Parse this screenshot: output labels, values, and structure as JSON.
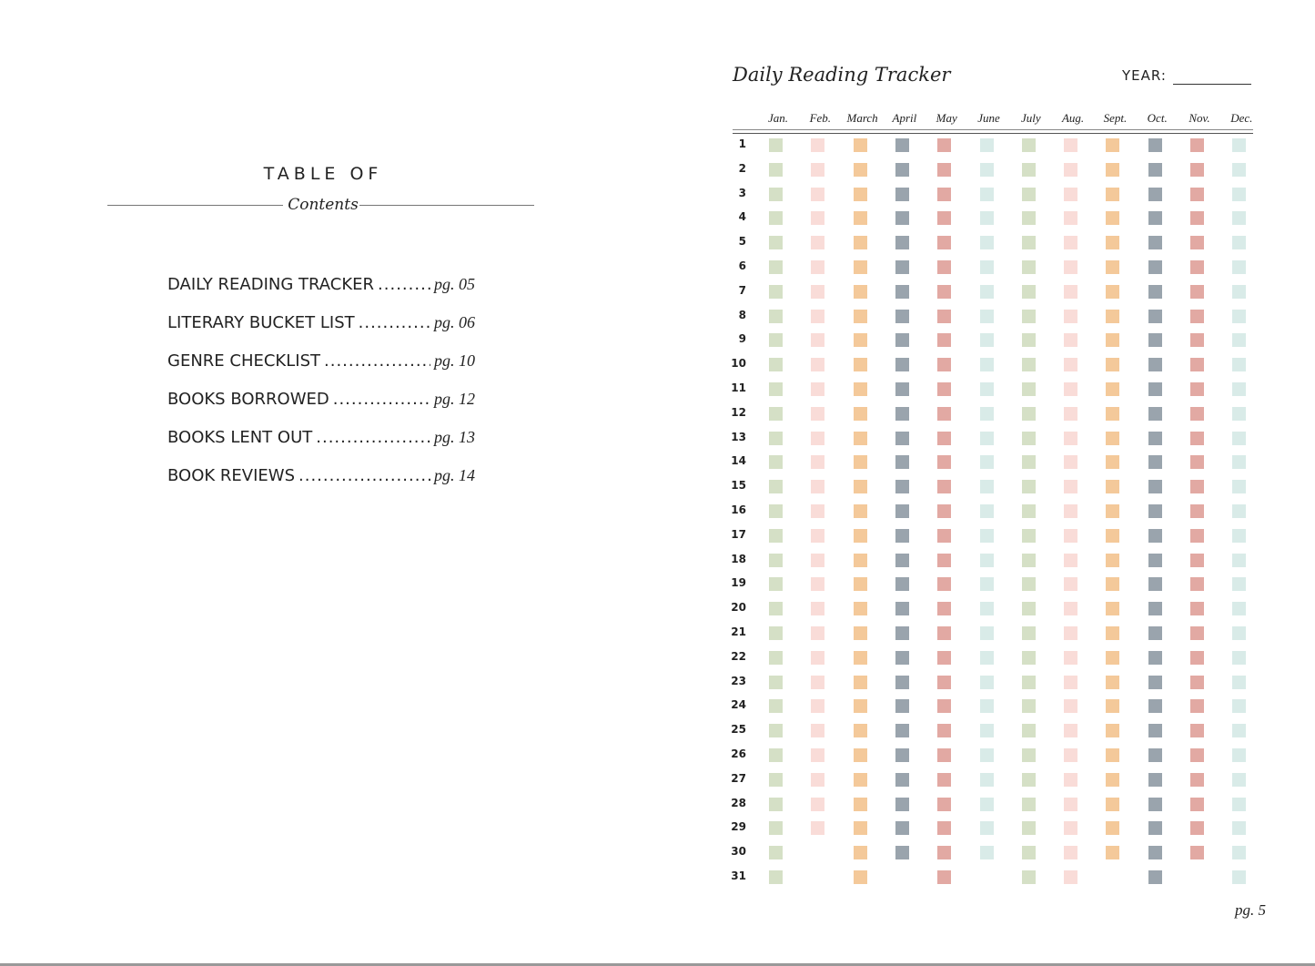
{
  "left_page": {
    "title_top": "TABLE OF",
    "title_bottom": "Contents",
    "items": [
      {
        "label": "DAILY READING TRACKER",
        "page": "pg. 05"
      },
      {
        "label": "LITERARY BUCKET LIST",
        "page": "pg. 06"
      },
      {
        "label": "GENRE  CHECKLIST",
        "page": "pg. 10"
      },
      {
        "label": "BOOKS  BORROWED",
        "page": "pg. 12"
      },
      {
        "label": "BOOKS LENT OUT",
        "page": "pg. 13"
      },
      {
        "label": "BOOK REVIEWS",
        "page": "pg. 14"
      }
    ]
  },
  "right_page": {
    "title": "Daily Reading Tracker",
    "year_label": "YEAR:",
    "months": [
      {
        "label": "Jan.",
        "days": 31,
        "color": "#d5e0c6"
      },
      {
        "label": "Feb.",
        "days": 29,
        "color": "#f9dcd8"
      },
      {
        "label": "March",
        "days": 31,
        "color": "#f4c99a"
      },
      {
        "label": "April",
        "days": 30,
        "color": "#9aa4ad"
      },
      {
        "label": "May",
        "days": 31,
        "color": "#e2a9a3"
      },
      {
        "label": "June",
        "days": 30,
        "color": "#d9ebe8"
      },
      {
        "label": "July",
        "days": 31,
        "color": "#d5e0c6"
      },
      {
        "label": "Aug.",
        "days": 31,
        "color": "#f9dcd8"
      },
      {
        "label": "Sept.",
        "days": 30,
        "color": "#f4c99a"
      },
      {
        "label": "Oct.",
        "days": 31,
        "color": "#9aa4ad"
      },
      {
        "label": "Nov.",
        "days": 30,
        "color": "#e2a9a3"
      },
      {
        "label": "Dec.",
        "days": 31,
        "color": "#d9ebe8"
      }
    ],
    "day_labels": [
      "1",
      "2",
      "3",
      "4",
      "5",
      "6",
      "7",
      "8",
      "9",
      "10",
      "11",
      "12",
      "13",
      "14",
      "15",
      "16",
      "17",
      "18",
      "19",
      "20",
      "21",
      "22",
      "23",
      "24",
      "25",
      "26",
      "27",
      "28",
      "29",
      "30",
      "31"
    ],
    "page_number": "pg. 5"
  }
}
